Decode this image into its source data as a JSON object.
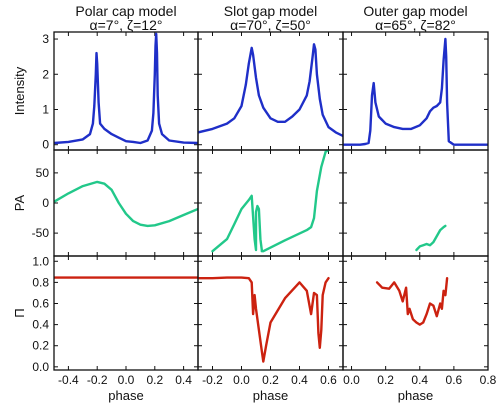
{
  "chart_data": {
    "type": "line",
    "rows": [
      {
        "key": "intensity",
        "ylabel": "Intensity",
        "yticks": [
          "0",
          "1",
          "2",
          "3"
        ]
      },
      {
        "key": "pa",
        "ylabel": "PA",
        "yticks": [
          "50",
          "0",
          "-50"
        ]
      },
      {
        "key": "pi",
        "ylabel": "Π",
        "yticks": [
          "1.0",
          "0.8",
          "0.6",
          "0.4",
          "0.2",
          "0.0"
        ]
      }
    ],
    "columns": [
      {
        "title_line1": "Polar cap model",
        "title_line2": "α=7°, ζ=12°",
        "xlabel": "phase",
        "xticks": [
          "-0.4",
          "-0.2",
          "0.0",
          "0.2",
          "0.4"
        ],
        "xlim": [
          -0.5,
          0.5
        ],
        "series": {
          "intensity": {
            "color": "#1f2fc8",
            "x": [
              -0.5,
              -0.4,
              -0.3,
              -0.25,
              -0.23,
              -0.22,
              -0.21,
              -0.205,
              -0.2,
              -0.19,
              -0.18,
              -0.15,
              -0.1,
              -0.05,
              0.0,
              0.05,
              0.1,
              0.15,
              0.18,
              0.19,
              0.2,
              0.205,
              0.21,
              0.215,
              0.22,
              0.23,
              0.25,
              0.3,
              0.4,
              0.5
            ],
            "y": [
              0.05,
              0.08,
              0.15,
              0.3,
              0.6,
              1.1,
              2.0,
              2.6,
              2.3,
              1.2,
              0.6,
              0.45,
              0.3,
              0.2,
              0.1,
              0.08,
              0.05,
              0.12,
              0.4,
              0.9,
              2.0,
              2.8,
              3.15,
              2.6,
              1.4,
              0.6,
              0.3,
              0.12,
              0.06,
              0.05
            ]
          },
          "pa": {
            "color": "#22c88a",
            "x": [
              -0.5,
              -0.4,
              -0.3,
              -0.2,
              -0.15,
              -0.1,
              -0.05,
              0.0,
              0.05,
              0.1,
              0.15,
              0.2,
              0.3,
              0.4,
              0.5
            ],
            "y": [
              2,
              16,
              28,
              35,
              32,
              22,
              0,
              -18,
              -30,
              -36,
              -38,
              -37,
              -30,
              -20,
              -10
            ]
          },
          "pi": {
            "color": "#cc2210",
            "x": [
              -0.5,
              0.5
            ],
            "y": [
              0.845,
              0.845
            ]
          }
        }
      },
      {
        "title_line1": "Slot gap model",
        "title_line2": "α=70°, ζ=50°",
        "xlabel": "phase",
        "xticks": [
          "-0.2",
          "0.0",
          "0.2",
          "0.4",
          "0.6"
        ],
        "xlim": [
          -0.3,
          0.7
        ],
        "series": {
          "intensity": {
            "color": "#1f2fc8",
            "x": [
              -0.3,
              -0.2,
              -0.1,
              -0.05,
              0.0,
              0.03,
              0.05,
              0.07,
              0.08,
              0.1,
              0.12,
              0.15,
              0.2,
              0.25,
              0.3,
              0.35,
              0.4,
              0.45,
              0.47,
              0.49,
              0.5,
              0.51,
              0.52,
              0.54,
              0.56,
              0.6,
              0.65,
              0.7
            ],
            "y": [
              0.35,
              0.45,
              0.6,
              0.75,
              1.1,
              1.7,
              2.3,
              2.75,
              2.55,
              1.9,
              1.4,
              1.05,
              0.75,
              0.65,
              0.65,
              0.8,
              1.0,
              1.4,
              1.8,
              2.5,
              2.85,
              2.7,
              2.0,
              1.3,
              0.85,
              0.5,
              0.35,
              0.25
            ]
          },
          "pa": {
            "color": "#22c88a",
            "x": [
              -0.2,
              -0.1,
              -0.05,
              0.0,
              0.05,
              0.07,
              0.09,
              0.1,
              0.1,
              0.11,
              0.12,
              0.13,
              0.14,
              0.14,
              0.15,
              0.3,
              0.45,
              0.48,
              0.5,
              0.52,
              0.55,
              0.58,
              0.6
            ],
            "y": [
              -80,
              -60,
              -35,
              -10,
              5,
              12,
              -60,
              -78,
              -15,
              -5,
              -10,
              -60,
              -78,
              -80,
              -80,
              -62,
              -45,
              -40,
              -25,
              20,
              60,
              85,
              88
            ]
          },
          "pi": {
            "color": "#cc2210",
            "x": [
              -0.3,
              -0.2,
              -0.1,
              0.0,
              0.05,
              0.07,
              0.08,
              0.09,
              0.1,
              0.12,
              0.14,
              0.15,
              0.17,
              0.2,
              0.3,
              0.4,
              0.45,
              0.48,
              0.5,
              0.52,
              0.53,
              0.54,
              0.55,
              0.56,
              0.58,
              0.6
            ],
            "y": [
              0.84,
              0.84,
              0.845,
              0.845,
              0.84,
              0.8,
              0.5,
              0.68,
              0.55,
              0.35,
              0.15,
              0.05,
              0.2,
              0.42,
              0.65,
              0.8,
              0.72,
              0.5,
              0.7,
              0.68,
              0.32,
              0.18,
              0.35,
              0.68,
              0.8,
              0.84
            ]
          }
        }
      },
      {
        "title_line1": "Outer gap model",
        "title_line2": "α=65°, ζ=82°",
        "xlabel": "phase",
        "xticks": [
          "0.0",
          "0.2",
          "0.4",
          "0.6",
          "0.8"
        ],
        "xlim": [
          -0.05,
          0.8
        ],
        "series": {
          "intensity": {
            "color": "#1f2fc8",
            "x": [
              -0.05,
              0.0,
              0.05,
              0.08,
              0.1,
              0.11,
              0.12,
              0.13,
              0.14,
              0.16,
              0.2,
              0.25,
              0.3,
              0.35,
              0.4,
              0.44,
              0.46,
              0.48,
              0.5,
              0.52,
              0.53,
              0.54,
              0.55,
              0.555,
              0.56,
              0.57,
              0.6,
              0.7,
              0.8
            ],
            "y": [
              0.0,
              0.0,
              0.0,
              0.02,
              0.05,
              0.4,
              1.4,
              1.75,
              1.2,
              0.8,
              0.6,
              0.5,
              0.45,
              0.45,
              0.55,
              0.75,
              0.95,
              1.05,
              1.1,
              1.2,
              1.6,
              2.4,
              3.0,
              2.5,
              1.2,
              0.1,
              0.0,
              0.0,
              0.0
            ]
          },
          "pa": {
            "color": "#22c88a",
            "x": [
              0.38,
              0.4,
              0.42,
              0.44,
              0.46,
              0.48,
              0.5,
              0.52,
              0.54,
              0.55
            ],
            "y": [
              -78,
              -72,
              -70,
              -68,
              -70,
              -65,
              -55,
              -45,
              -40,
              -38
            ]
          },
          "pi": {
            "color": "#cc2210",
            "x": [
              0.15,
              0.18,
              0.22,
              0.25,
              0.28,
              0.3,
              0.32,
              0.33,
              0.34,
              0.36,
              0.38,
              0.4,
              0.42,
              0.44,
              0.46,
              0.48,
              0.5,
              0.52,
              0.53,
              0.54,
              0.55,
              0.56
            ],
            "y": [
              0.8,
              0.75,
              0.74,
              0.8,
              0.72,
              0.62,
              0.75,
              0.5,
              0.55,
              0.45,
              0.42,
              0.4,
              0.42,
              0.5,
              0.6,
              0.58,
              0.48,
              0.6,
              0.55,
              0.72,
              0.68,
              0.84
            ]
          }
        }
      }
    ]
  }
}
